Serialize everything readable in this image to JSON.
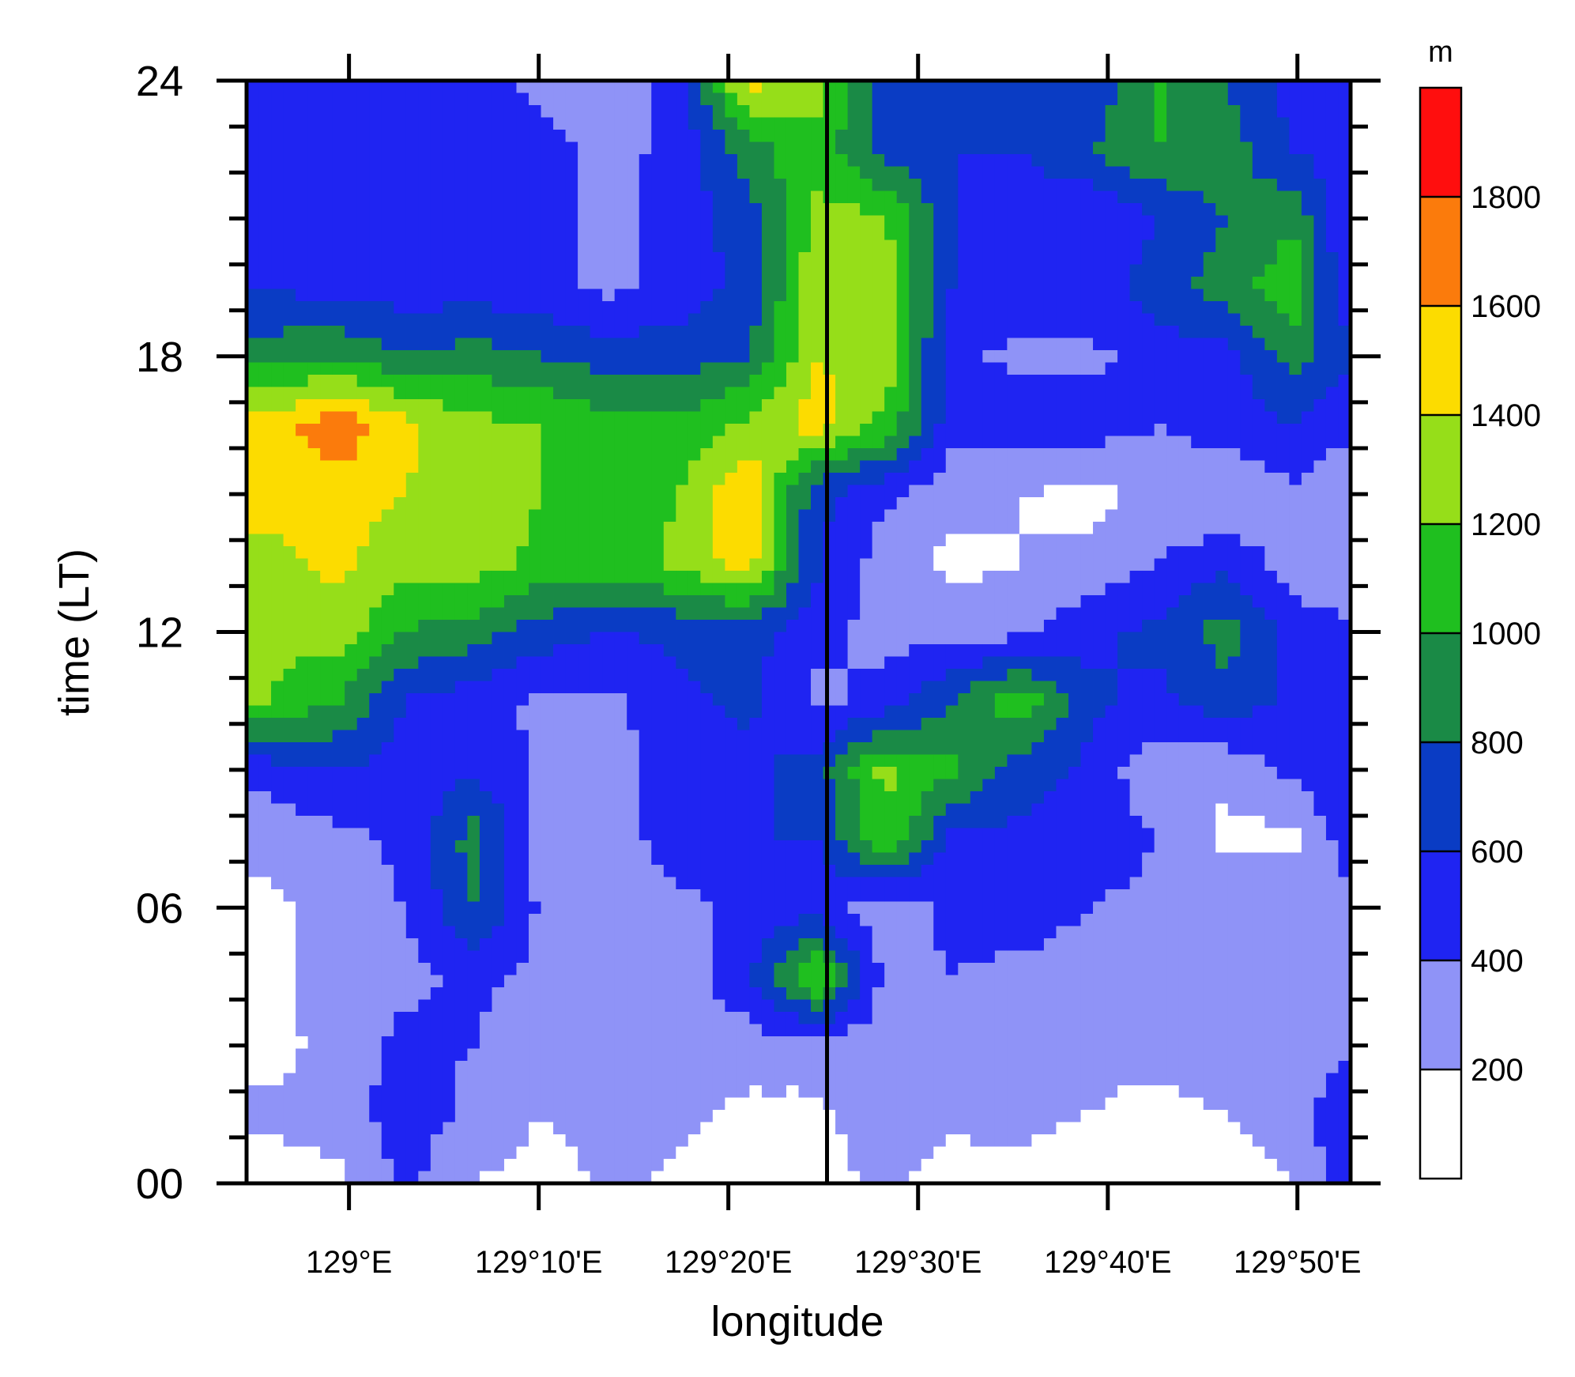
{
  "chart_data": {
    "type": "heatmap",
    "xlabel": "longitude",
    "ylabel": "time (LT)",
    "x_ticks": [
      {
        "value": 129.0,
        "label": "129°E"
      },
      {
        "value": 129.1667,
        "label": "129°10'E"
      },
      {
        "value": 129.3333,
        "label": "129°20'E"
      },
      {
        "value": 129.5,
        "label": "129°30'E"
      },
      {
        "value": 129.6667,
        "label": "129°40'E"
      },
      {
        "value": 129.8333,
        "label": "129°50'E"
      }
    ],
    "y_ticks": [
      {
        "value": 0,
        "label": "00"
      },
      {
        "value": 6,
        "label": "06"
      },
      {
        "value": 12,
        "label": "12"
      },
      {
        "value": 18,
        "label": "18"
      },
      {
        "value": 24,
        "label": "24"
      }
    ],
    "xlim": [
      128.91,
      129.88
    ],
    "ylim": [
      0,
      24
    ],
    "vertical_line_x": 129.42,
    "colorbar": {
      "unit": "m",
      "levels": [
        200,
        400,
        600,
        800,
        1000,
        1200,
        1400,
        1600,
        1800
      ],
      "level_labels": [
        "200",
        "400",
        "600",
        "800",
        "1000",
        "1200",
        "1400",
        "1600",
        "1800"
      ],
      "colors": [
        "#ffffff",
        "#8f93f7",
        "#1f24f2",
        "#0a3cc4",
        "#1a8a46",
        "#1fbf1f",
        "#96de19",
        "#fcdc00",
        "#fb7b0c",
        "#ff0e0e"
      ]
    },
    "field": {
      "description_rows_top_to_bottom_time": [
        24,
        0
      ],
      "grid_lon": [
        128.93,
        128.99,
        129.05,
        129.11,
        129.17,
        129.23,
        129.29,
        129.35,
        129.41,
        129.47,
        129.53,
        129.59,
        129.65,
        129.71,
        129.77,
        129.83,
        129.87
      ],
      "grid_time": [
        0,
        1.5,
        3,
        4.5,
        6,
        7.5,
        9,
        10.5,
        12,
        13.5,
        15,
        16.5,
        18,
        19.5,
        21,
        22.5,
        24
      ],
      "values": [
        [
          100,
          150,
          450,
          200,
          100,
          250,
          150,
          100,
          100,
          250,
          100,
          150,
          100,
          100,
          150,
          200,
          500
        ],
        [
          250,
          300,
          500,
          350,
          200,
          300,
          250,
          150,
          150,
          350,
          250,
          250,
          200,
          150,
          200,
          250,
          550
        ],
        [
          100,
          300,
          450,
          400,
          250,
          350,
          300,
          300,
          300,
          300,
          350,
          300,
          250,
          250,
          300,
          300,
          350
        ],
        [
          150,
          300,
          350,
          450,
          350,
          300,
          300,
          550,
          1250,
          350,
          400,
          350,
          300,
          300,
          300,
          300,
          350
        ],
        [
          150,
          300,
          400,
          800,
          350,
          300,
          350,
          450,
          500,
          250,
          450,
          500,
          400,
          350,
          350,
          350,
          350
        ],
        [
          250,
          350,
          450,
          900,
          300,
          300,
          500,
          600,
          600,
          1200,
          550,
          550,
          500,
          400,
          150,
          150,
          450
        ],
        [
          500,
          600,
          500,
          550,
          350,
          350,
          450,
          550,
          700,
          1250,
          1050,
          700,
          550,
          250,
          250,
          450,
          550
        ],
        [
          1200,
          1000,
          600,
          500,
          350,
          350,
          550,
          650,
          350,
          450,
          800,
          1150,
          650,
          550,
          700,
          550,
          550
        ],
        [
          1250,
          1300,
          1000,
          900,
          700,
          600,
          650,
          700,
          450,
          350,
          300,
          350,
          550,
          650,
          900,
          500,
          450
        ],
        [
          1350,
          1450,
          1250,
          1300,
          1150,
          1100,
          1250,
          1500,
          650,
          300,
          150,
          200,
          250,
          400,
          550,
          300,
          250
        ],
        [
          1450,
          1500,
          1400,
          1250,
          1200,
          1100,
          1200,
          1600,
          650,
          450,
          250,
          200,
          150,
          250,
          200,
          350,
          250
        ],
        [
          1500,
          1750,
          1450,
          1250,
          1200,
          1050,
          1050,
          1250,
          1500,
          1150,
          500,
          500,
          500,
          400,
          500,
          600,
          450
        ],
        [
          900,
          1000,
          800,
          900,
          800,
          700,
          700,
          800,
          1400,
          1350,
          450,
          350,
          350,
          500,
          500,
          900,
          650
        ],
        [
          600,
          500,
          500,
          500,
          450,
          350,
          500,
          650,
          1350,
          1300,
          600,
          550,
          500,
          700,
          900,
          1150,
          550
        ],
        [
          550,
          500,
          500,
          550,
          500,
          300,
          500,
          700,
          1250,
          1250,
          600,
          450,
          400,
          600,
          800,
          950,
          500
        ],
        [
          600,
          550,
          500,
          500,
          450,
          350,
          450,
          900,
          1150,
          700,
          600,
          600,
          800,
          1000,
          900,
          600,
          500
        ],
        [
          400,
          600,
          550,
          450,
          350,
          300,
          450,
          1500,
          1300,
          700,
          600,
          650,
          600,
          1050,
          800,
          500,
          450
        ]
      ]
    }
  }
}
